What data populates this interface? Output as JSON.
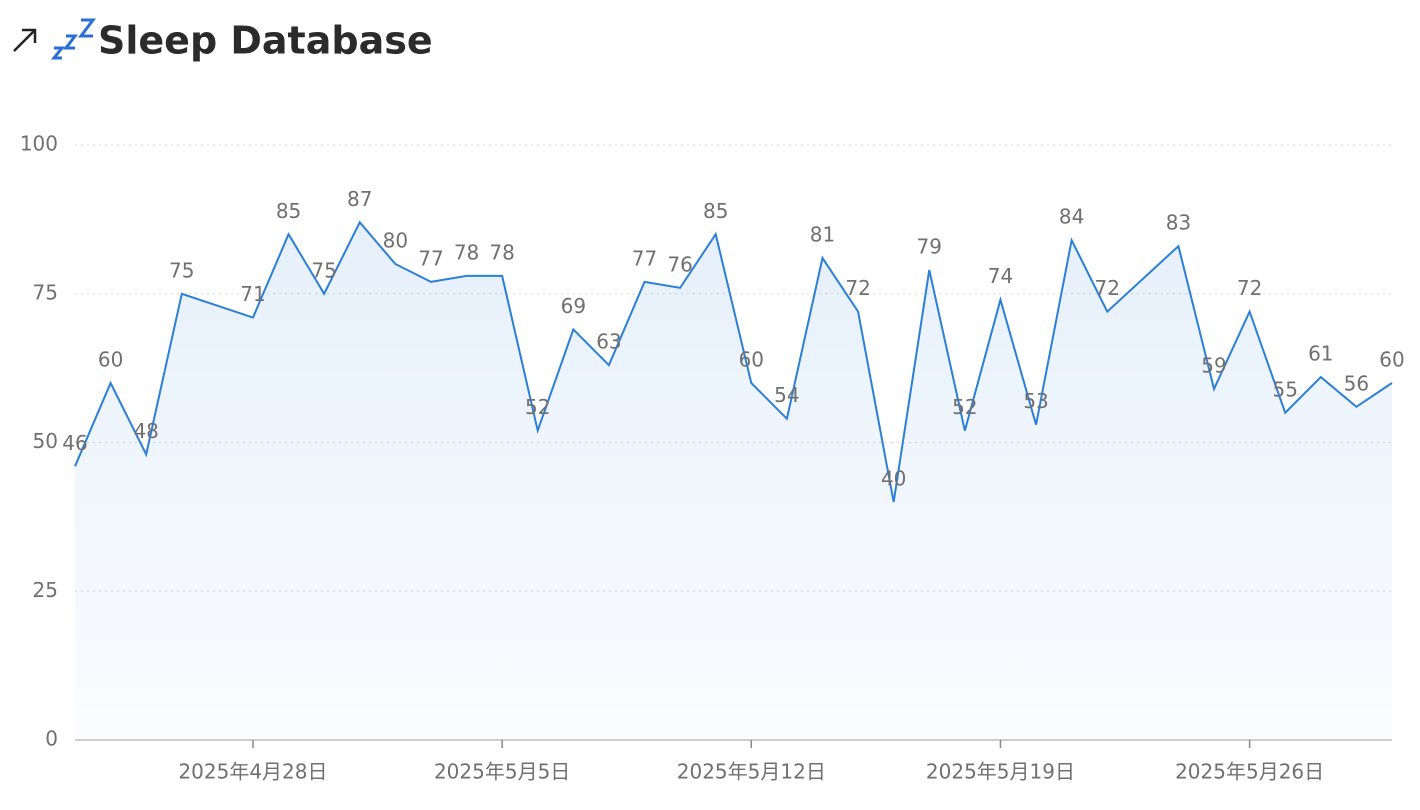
{
  "header": {
    "title": "Sleep Database"
  },
  "chart_data": {
    "type": "area",
    "x": [
      "2025-04-23",
      "2025-04-24",
      "2025-04-25",
      "2025-04-26",
      "2025-04-28",
      "2025-04-29",
      "2025-04-30",
      "2025-05-01",
      "2025-05-02",
      "2025-05-03",
      "2025-05-04",
      "2025-05-05",
      "2025-05-06",
      "2025-05-07",
      "2025-05-08",
      "2025-05-09",
      "2025-05-10",
      "2025-05-11",
      "2025-05-12",
      "2025-05-13",
      "2025-05-14",
      "2025-05-15",
      "2025-05-16",
      "2025-05-17",
      "2025-05-18",
      "2025-05-19",
      "2025-05-20",
      "2025-05-21",
      "2025-05-22",
      "2025-05-24",
      "2025-05-25",
      "2025-05-26",
      "2025-05-27",
      "2025-05-28",
      "2025-05-29",
      "2025-05-30"
    ],
    "values": [
      46,
      60,
      48,
      75,
      71,
      85,
      75,
      87,
      80,
      77,
      78,
      78,
      52,
      69,
      63,
      77,
      76,
      85,
      60,
      54,
      81,
      72,
      40,
      79,
      52,
      74,
      53,
      84,
      72,
      83,
      59,
      72,
      55,
      61,
      56,
      60
    ],
    "color": "#2a7fd9",
    "xlim": [
      "2025-04-23",
      "2025-05-30"
    ],
    "xticks": [
      {
        "value": "2025-04-28",
        "label": "2025年4月28日"
      },
      {
        "value": "2025-05-05",
        "label": "2025年5月5日"
      },
      {
        "value": "2025-05-12",
        "label": "2025年5月12日"
      },
      {
        "value": "2025-05-19",
        "label": "2025年5月19日"
      },
      {
        "value": "2025-05-26",
        "label": "2025年5月26日"
      }
    ],
    "ylim": [
      0,
      100
    ],
    "yticks": [
      0,
      25,
      50,
      75,
      100
    ],
    "grid": true
  }
}
